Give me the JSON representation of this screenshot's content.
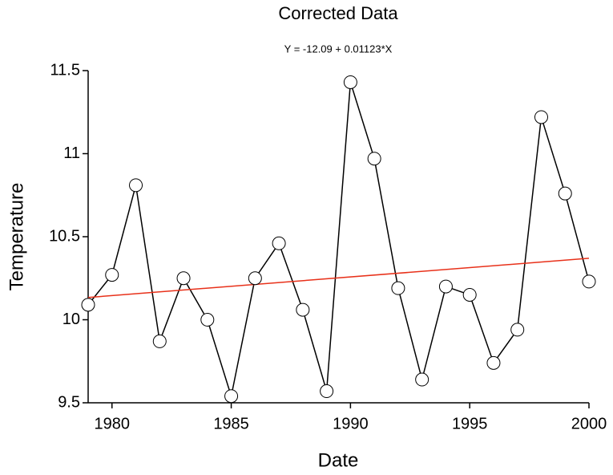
{
  "chart_data": {
    "type": "line",
    "title": "Corrected Data",
    "equation": {
      "label": "Y = -12.09 + 0.01123*X",
      "intercept": -12.09,
      "slope": 0.01123
    },
    "fit_color": "#e8311a",
    "x_label": "Date",
    "y_label": "Temperature",
    "x": [
      1979,
      1980,
      1981,
      1982,
      1983,
      1984,
      1985,
      1986,
      1987,
      1988,
      1989,
      1990,
      1991,
      1992,
      1993,
      1994,
      1995,
      1996,
      1997,
      1998,
      1999,
      2000
    ],
    "values": [
      10.09,
      10.27,
      10.81,
      9.87,
      10.25,
      10.0,
      9.54,
      10.25,
      10.46,
      10.06,
      9.57,
      11.43,
      10.97,
      10.19,
      9.64,
      10.2,
      10.15,
      9.74,
      9.94,
      11.22,
      10.76,
      10.23
    ],
    "color": "#000000",
    "xlim": [
      1979,
      2000
    ],
    "xticks": [
      1980,
      1985,
      1990,
      1995,
      2000
    ],
    "ylim": [
      9.5,
      11.5
    ],
    "yticks": [
      9.5,
      10,
      10.5,
      11,
      11.5
    ]
  }
}
